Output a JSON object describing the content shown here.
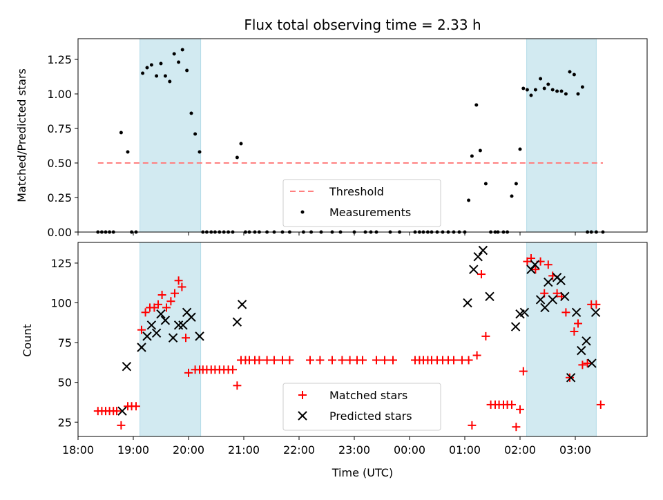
{
  "chart_data": [
    {
      "type": "scatter",
      "title": "Flux total observing time = 2.33 h",
      "xlabel": "",
      "ylabel": "Matched/Predicted stars",
      "ylim": [
        0,
        1.4
      ],
      "yticks": [
        "0.00",
        "0.25",
        "0.50",
        "0.75",
        "1.00",
        "1.25"
      ],
      "yticks_values": [
        0,
        0.25,
        0.5,
        0.75,
        1.0,
        1.25
      ],
      "threshold": {
        "label": "Threshold",
        "value": 0.5,
        "x_start": 18.36,
        "x_end": 27.5,
        "color": "#ff7f7f"
      },
      "legend": {
        "position": "lower-center",
        "entries": [
          "Threshold",
          "Measurements"
        ]
      },
      "series": [
        {
          "name": "Measurements",
          "color": "#000000",
          "x": [
            18.36,
            18.43,
            18.5,
            18.57,
            18.64,
            18.78,
            18.9,
            18.97,
            19.05,
            19.17,
            19.25,
            19.33,
            19.42,
            19.5,
            19.58,
            19.66,
            19.74,
            19.82,
            19.89,
            19.97,
            20.05,
            20.12,
            20.2,
            20.26,
            20.33,
            20.41,
            20.48,
            20.56,
            20.64,
            20.72,
            20.8,
            20.88,
            20.95,
            21.03,
            21.1,
            21.2,
            21.28,
            21.42,
            21.55,
            21.7,
            21.83,
            22.08,
            22.22,
            22.4,
            22.6,
            22.75,
            23.0,
            23.2,
            23.3,
            23.4,
            23.65,
            23.82,
            24.1,
            24.18,
            24.25,
            24.33,
            24.4,
            24.5,
            24.6,
            24.7,
            24.8,
            24.9,
            25.0,
            25.07,
            25.13,
            25.21,
            25.28,
            25.38,
            25.47,
            25.55,
            25.6,
            25.7,
            25.77,
            25.85,
            25.93,
            26.0,
            26.06,
            26.13,
            26.2,
            26.28,
            26.37,
            26.44,
            26.51,
            26.59,
            26.67,
            26.75,
            26.83,
            26.9,
            26.98,
            27.05,
            27.13,
            27.22,
            27.29,
            27.38,
            27.5
          ],
          "values": [
            0,
            0,
            0,
            0,
            0,
            0.72,
            0.58,
            0,
            0,
            1.15,
            1.19,
            1.21,
            1.13,
            1.22,
            1.13,
            1.09,
            1.29,
            1.23,
            1.32,
            1.17,
            0.86,
            0.71,
            0.58,
            0,
            0,
            0,
            0,
            0,
            0,
            0,
            0,
            0.54,
            0.64,
            0,
            0,
            0,
            0,
            0,
            0,
            0,
            0,
            0,
            0,
            0,
            0,
            0,
            0,
            0,
            0,
            0,
            0,
            0,
            0,
            0,
            0,
            0,
            0,
            0,
            0,
            0,
            0,
            0,
            0,
            0.23,
            0.55,
            0.92,
            0.59,
            0.35,
            0,
            0,
            0,
            0,
            0,
            0.26,
            0.35,
            0.6,
            1.04,
            1.03,
            0.99,
            1.03,
            1.11,
            1.04,
            1.07,
            1.03,
            1.02,
            1.02,
            1.0,
            1.16,
            1.14,
            1.0,
            1.05,
            0,
            0,
            0,
            0
          ]
        }
      ]
    },
    {
      "type": "scatter",
      "title": "",
      "xlabel": "Time (UTC)",
      "ylabel": "Count",
      "ylim": [
        16,
        138
      ],
      "yticks": [
        "25",
        "50",
        "75",
        "100",
        "125"
      ],
      "yticks_values": [
        25,
        50,
        75,
        100,
        125
      ],
      "xlim": [
        18.0,
        28.3
      ],
      "xticks": [
        "18:00",
        "19:00",
        "20:00",
        "21:00",
        "22:00",
        "23:00",
        "00:00",
        "01:00",
        "02:00",
        "03:00"
      ],
      "xticks_values": [
        18,
        19,
        20,
        21,
        22,
        23,
        24,
        25,
        26,
        27
      ],
      "legend": {
        "position": "lower-center",
        "entries": [
          "Matched stars",
          "Predicted stars"
        ]
      },
      "shaded_intervals": [
        [
          19.12,
          20.22
        ],
        [
          26.12,
          27.38
        ]
      ],
      "shade_color": "#add8e6",
      "series": [
        {
          "name": "Matched stars",
          "marker": "plus",
          "color": "#ff0000",
          "x": [
            18.36,
            18.43,
            18.5,
            18.57,
            18.64,
            18.7,
            18.78,
            18.9,
            18.97,
            19.05,
            19.15,
            19.22,
            19.3,
            19.38,
            19.45,
            19.52,
            19.6,
            19.68,
            19.75,
            19.82,
            19.88,
            19.95,
            20.0,
            20.12,
            20.2,
            20.26,
            20.33,
            20.41,
            20.48,
            20.56,
            20.64,
            20.72,
            20.8,
            20.88,
            20.95,
            21.03,
            21.1,
            21.2,
            21.28,
            21.42,
            21.55,
            21.7,
            21.83,
            22.2,
            22.38,
            22.6,
            22.78,
            22.92,
            23.05,
            23.15,
            23.4,
            23.55,
            23.7,
            24.1,
            24.18,
            24.25,
            24.33,
            24.4,
            24.5,
            24.6,
            24.7,
            24.8,
            24.95,
            25.07,
            25.13,
            25.22,
            25.3,
            25.38,
            25.47,
            25.55,
            25.62,
            25.7,
            25.77,
            25.85,
            25.93,
            26.0,
            26.06,
            26.13,
            26.2,
            26.28,
            26.37,
            26.44,
            26.51,
            26.59,
            26.67,
            26.75,
            26.83,
            26.9,
            26.98,
            27.05,
            27.13,
            27.22,
            27.29,
            27.38,
            27.46
          ],
          "values": [
            32,
            32,
            32,
            32,
            32,
            32,
            23,
            35,
            35,
            35,
            83,
            94,
            97,
            97,
            99,
            105,
            97,
            101,
            106,
            114,
            110,
            78,
            56,
            58,
            58,
            58,
            58,
            58,
            58,
            58,
            58,
            58,
            58,
            48,
            64,
            64,
            64,
            64,
            64,
            64,
            64,
            64,
            64,
            64,
            64,
            64,
            64,
            64,
            64,
            64,
            64,
            64,
            64,
            64,
            64,
            64,
            64,
            64,
            64,
            64,
            64,
            64,
            64,
            64,
            23,
            67,
            118,
            79,
            36,
            36,
            36,
            36,
            36,
            36,
            22,
            33,
            57,
            126,
            128,
            121,
            126,
            106,
            124,
            117,
            106,
            104,
            94,
            53,
            82,
            87,
            61,
            62,
            99,
            99,
            36
          ]
        },
        {
          "name": "Predicted stars",
          "marker": "x",
          "color": "#000000",
          "x": [
            18.8,
            18.88,
            19.15,
            19.25,
            19.33,
            19.42,
            19.5,
            19.58,
            19.72,
            19.82,
            19.9,
            19.97,
            20.05,
            20.2,
            20.88,
            20.97,
            25.05,
            25.16,
            25.24,
            25.33,
            25.45,
            25.92,
            26.0,
            26.08,
            26.2,
            26.27,
            26.37,
            26.45,
            26.51,
            26.59,
            26.67,
            26.74,
            26.81,
            26.92,
            27.02,
            27.11,
            27.2,
            27.3,
            27.37
          ],
          "values": [
            32,
            60,
            72,
            79,
            86,
            81,
            93,
            89,
            78,
            86,
            86,
            94,
            91,
            79,
            88,
            99,
            100,
            121,
            129,
            133,
            104,
            85,
            93,
            94,
            121,
            124,
            102,
            97,
            113,
            102,
            116,
            114,
            104,
            53,
            94,
            70,
            76,
            62,
            94
          ]
        }
      ]
    }
  ]
}
